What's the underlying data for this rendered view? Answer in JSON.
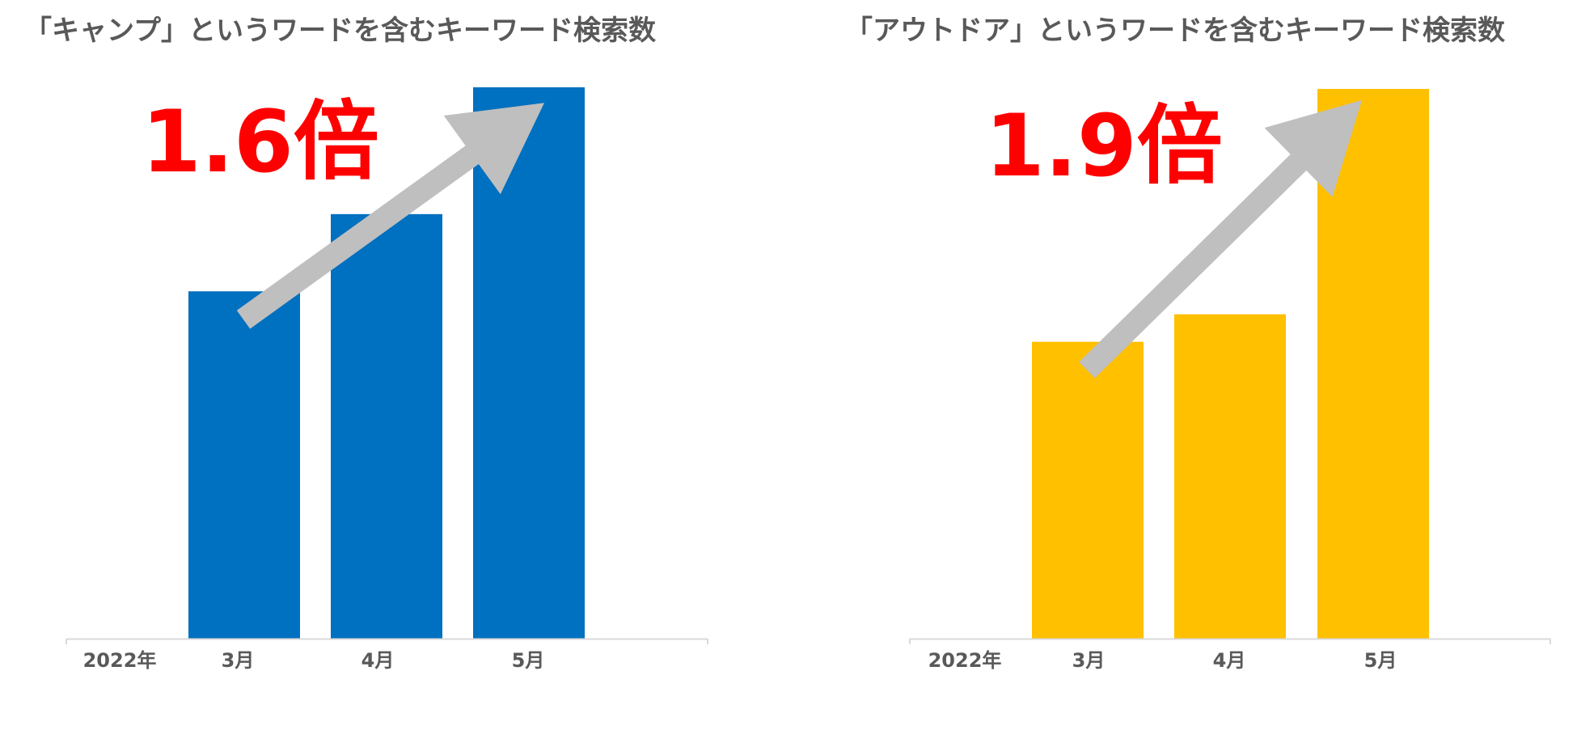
{
  "chart_data": [
    {
      "type": "bar",
      "title": "「キャンプ」というワードを含むキーワード検索数",
      "axis_prefix": "2022年",
      "categories": [
        "3月",
        "4月",
        "5月"
      ],
      "values": [
        63,
        77,
        100
      ],
      "ylim": [
        0,
        100
      ],
      "annotation": "1.6倍",
      "bar_color": "#0070c0",
      "arrow_color": "#bfbfbf",
      "annotation_color": "#ff0000",
      "grid": false,
      "legend": "none"
    },
    {
      "type": "bar",
      "title": "「アウトドア」というワードを含むキーワード検索数",
      "axis_prefix": "2022年",
      "categories": [
        "3月",
        "4月",
        "5月"
      ],
      "values": [
        54,
        59,
        100
      ],
      "ylim": [
        0,
        100
      ],
      "annotation": "1.9倍",
      "bar_color": "#ffc000",
      "arrow_color": "#bfbfbf",
      "annotation_color": "#ff0000",
      "grid": false,
      "legend": "none"
    }
  ]
}
